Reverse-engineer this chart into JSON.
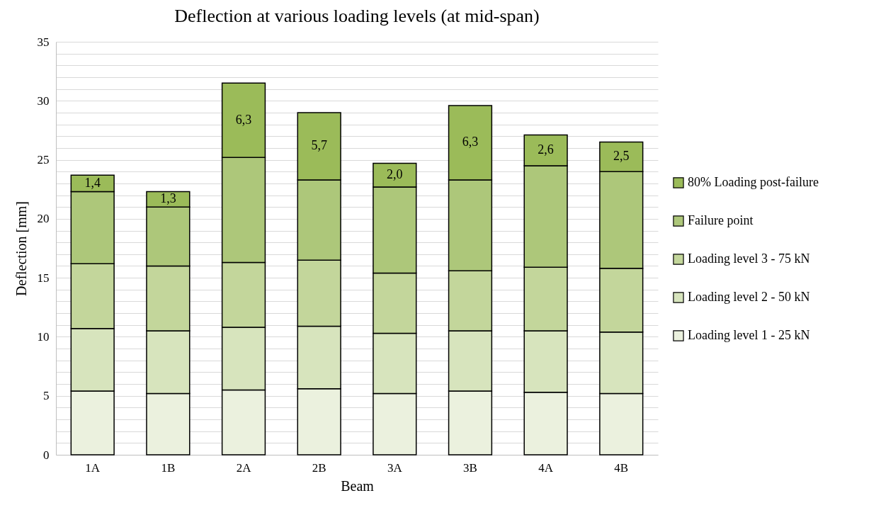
{
  "chart_data": {
    "type": "bar",
    "stacked": true,
    "title": "Deflection at various loading levels (at mid-span)",
    "xlabel": "Beam",
    "ylabel": "Deflection [mm]",
    "categories": [
      "1A",
      "1B",
      "2A",
      "2B",
      "3A",
      "3B",
      "4A",
      "4B"
    ],
    "series": [
      {
        "name": "Loading level 1 - 25 kN",
        "color": "#ebf1de",
        "values": [
          5.4,
          5.2,
          5.5,
          5.6,
          5.2,
          5.4,
          5.3,
          5.2
        ]
      },
      {
        "name": "Loading level 2 - 50 kN",
        "color": "#d7e4bd",
        "values": [
          5.3,
          5.3,
          5.3,
          5.3,
          5.1,
          5.1,
          5.2,
          5.2
        ]
      },
      {
        "name": "Loading level 3 - 75 kN",
        "color": "#c3d69b",
        "values": [
          5.5,
          5.5,
          5.5,
          5.6,
          5.1,
          5.1,
          5.4,
          5.4
        ]
      },
      {
        "name": "Failure point",
        "color": "#adc77a",
        "values": [
          6.1,
          5.0,
          8.9,
          6.8,
          7.3,
          7.7,
          8.6,
          8.2
        ]
      },
      {
        "name": "80% Loading post-failure",
        "color": "#9bbb59",
        "values": [
          1.4,
          1.3,
          6.3,
          5.7,
          2.0,
          6.3,
          2.6,
          2.5
        ],
        "value_labels": [
          "1,4",
          "1,3",
          "6,3",
          "5,7",
          "2,0",
          "6,3",
          "2,6",
          "2,5"
        ]
      }
    ],
    "ylim": [
      0,
      35
    ],
    "yticks": [
      0,
      {
        "value": 1,
        "label": null
      },
      {
        "value": 2,
        "label": null
      },
      {
        "value": 3,
        "label": null
      },
      {
        "value": 4,
        "label": null
      },
      5,
      {
        "value": 6,
        "label": null
      },
      {
        "value": 7,
        "label": null
      },
      {
        "value": 8,
        "label": null
      },
      {
        "value": 9,
        "label": null
      },
      10,
      {
        "value": 11,
        "label": null
      },
      {
        "value": 12,
        "label": null
      },
      {
        "value": 13,
        "label": null
      },
      {
        "value": 14,
        "label": null
      },
      15,
      {
        "value": 16,
        "label": null
      },
      {
        "value": 17,
        "label": null
      },
      {
        "value": 18,
        "label": null
      },
      {
        "value": 19,
        "label": null
      },
      20,
      {
        "value": 21,
        "label": null
      },
      {
        "value": 22,
        "label": null
      },
      {
        "value": 23,
        "label": null
      },
      {
        "value": 24,
        "label": null
      },
      25,
      {
        "value": 26,
        "label": null
      },
      {
        "value": 27,
        "label": null
      },
      {
        "value": 28,
        "label": null
      },
      {
        "value": 29,
        "label": null
      },
      30,
      {
        "value": 31,
        "label": null
      },
      {
        "value": 32,
        "label": null
      },
      {
        "value": 33,
        "label": null
      },
      {
        "value": 34,
        "label": null
      },
      35
    ],
    "grid": "y",
    "legend": "right"
  }
}
